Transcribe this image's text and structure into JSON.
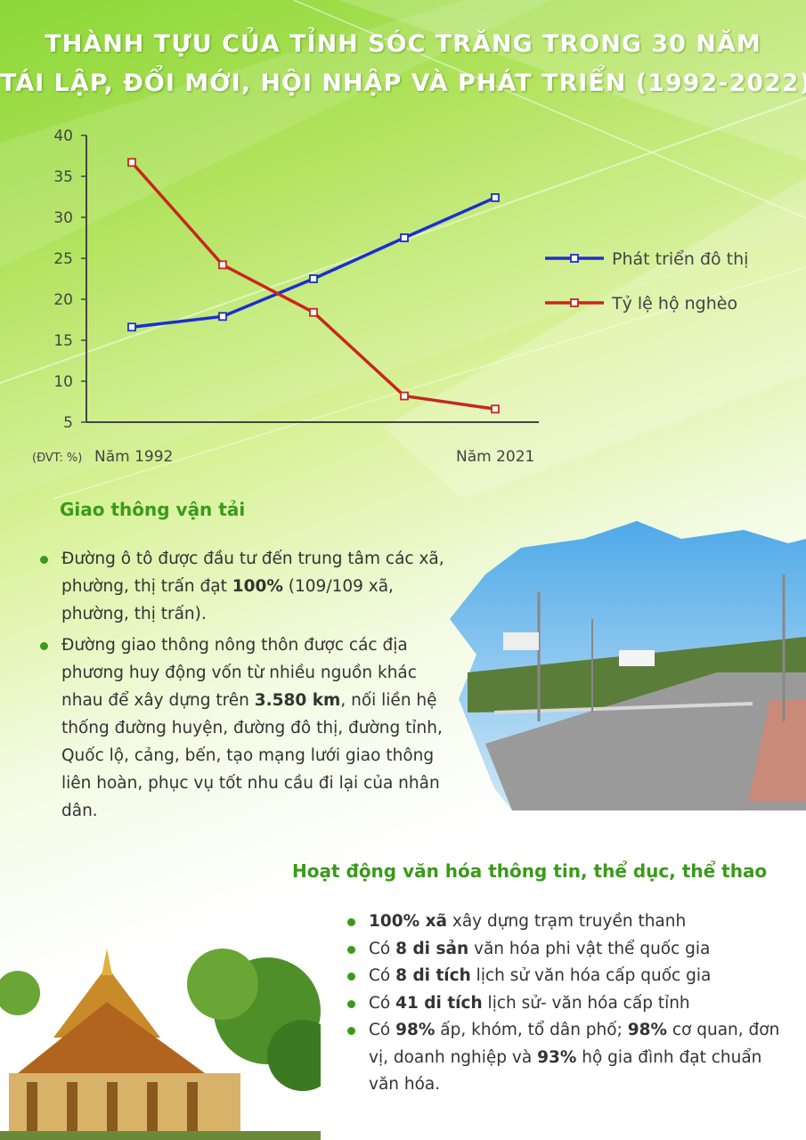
{
  "title": {
    "line1": "THÀNH TỰU CỦA TỈNH SÓC TRĂNG TRONG 30 NĂM",
    "line2": "TÁI LẬP, ĐỔI MỚI, HỘI NHẬP VÀ PHÁT TRIỂN (1992-2022)"
  },
  "chart_data": {
    "type": "line",
    "unit_label": "(ĐVT: %)",
    "x_start_label": "Năm 1992",
    "x_end_label": "Năm 2021",
    "y_ticks": [
      "40",
      "35",
      "30",
      "25",
      "20",
      "15",
      "10",
      "5"
    ],
    "ylim": [
      5,
      40
    ],
    "grid": false,
    "legend_position": "right",
    "series": [
      {
        "name": "Phát triển đô thị",
        "color": "#1a2fd0",
        "values": [
          16.6,
          17.9,
          22.5,
          27.5,
          32.4
        ]
      },
      {
        "name": "Tỷ lệ hộ nghèo",
        "color": "#c8261e",
        "values": [
          36.7,
          24.2,
          18.4,
          8.2,
          6.6
        ]
      }
    ]
  },
  "section1": {
    "title": "Giao thông vận tải",
    "items": [
      {
        "parts": [
          "Đường ô tô được đầu tư đến trung tâm các xã, phường, thị trấn đạt ",
          "100%",
          " (109/109 xã, phường, thị trấn)."
        ]
      },
      {
        "parts": [
          "Đường giao thông nông thôn được các địa phương huy động vốn từ nhiều nguồn khác nhau để xây dựng trên ",
          "3.580 km",
          ", nối liền hệ thống đường huyện, đường đô thị, đường tỉnh, Quốc lộ, cảng, bến, tạo mạng lưới giao thông liên hoàn, phục vụ tốt nhu cầu đi lại của nhân dân."
        ]
      }
    ]
  },
  "section2": {
    "title": "Hoạt động văn hóa thông tin, thể dục, thể thao",
    "items": [
      {
        "parts": [
          "",
          "100% xã",
          " xây dựng trạm truyền thanh"
        ]
      },
      {
        "parts": [
          "Có ",
          "8 di sản",
          " văn hóa phi vật thể quốc gia"
        ]
      },
      {
        "parts": [
          "Có ",
          "8 di tích",
          " lịch sử văn hóa cấp quốc gia"
        ]
      },
      {
        "parts": [
          "Có ",
          "41 di tích",
          " lịch sử- văn hóa cấp tỉnh"
        ]
      },
      {
        "parts": [
          "Có ",
          "98%",
          " ấp, khóm, tổ dân phố; ",
          "98%",
          " cơ quan, đơn vị, doanh nghiệp và ",
          "93%",
          " hộ gia đình đạt chuẩn văn hóa."
        ]
      }
    ]
  },
  "colors": {
    "heading_green": "#3a9a1a",
    "title_text": "#ffffff",
    "body_text": "#333333"
  },
  "images": {
    "road_photo": "road-photo",
    "temple_photo": "khmer-pagoda-photo"
  }
}
